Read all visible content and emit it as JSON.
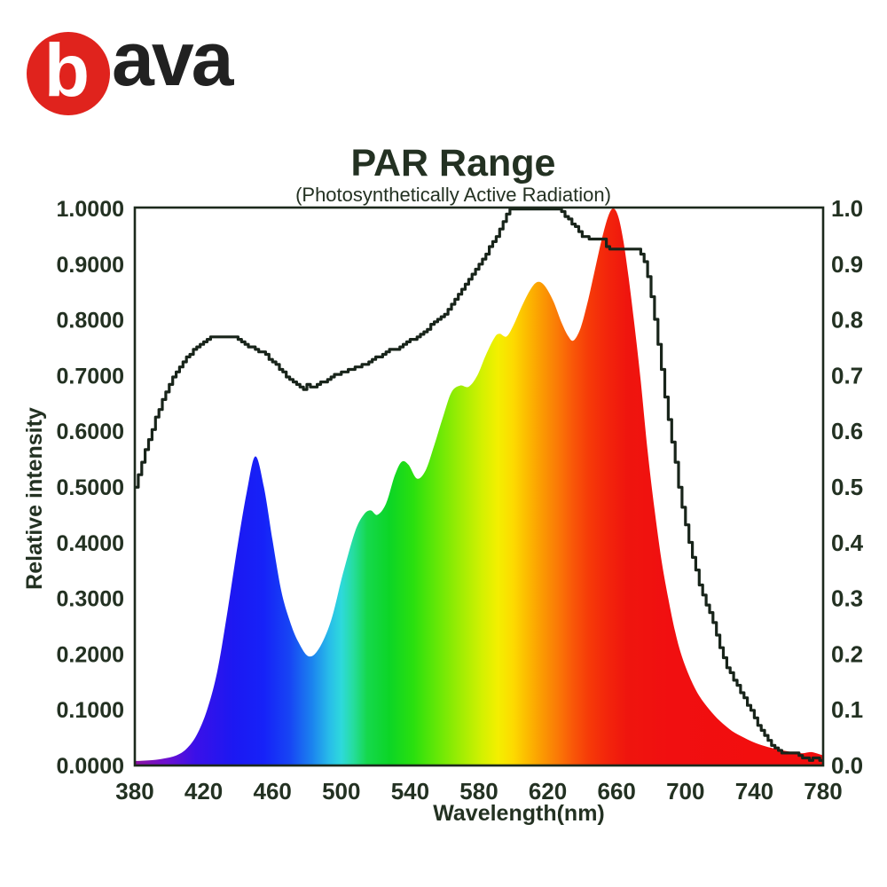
{
  "logo": {
    "b_letter": "b",
    "rest_letters": "ava",
    "circle_color": "#e0231d",
    "b_color": "#ffffff",
    "letters_color": "#212121"
  },
  "chart_data": {
    "type": "area",
    "title": "PAR Range",
    "subtitle": "(Photosynthetically Active Radiation)",
    "xlabel": "Wavelength(nm)",
    "ylabel": "Relative intensity",
    "xlim": [
      380,
      780
    ],
    "ylim": [
      0,
      1
    ],
    "grid": false,
    "legend": "none",
    "text_color": "#233122",
    "axis_color": "#1c291c",
    "line_color": "#18241a",
    "x_ticks": [
      "380",
      "420",
      "460",
      "500",
      "540",
      "580",
      "620",
      "660",
      "700",
      "740",
      "780"
    ],
    "y_ticks_left": [
      "1.0000",
      "0.9000",
      "0.8000",
      "0.7000",
      "0.6000",
      "0.5000",
      "0.4000",
      "0.3000",
      "0.2000",
      "0.1000",
      "0.0000"
    ],
    "y_ticks_right": [
      "1.0",
      "0.9",
      "0.8",
      "0.7",
      "0.6",
      "0.5",
      "0.4",
      "0.3",
      "0.2",
      "0.1",
      "0.0"
    ],
    "series": [
      {
        "name": "led-spectrum-rainbow-area",
        "type": "smooth-area",
        "points": [
          [
            380,
            0.008
          ],
          [
            388,
            0.009
          ],
          [
            396,
            0.012
          ],
          [
            404,
            0.018
          ],
          [
            410,
            0.03
          ],
          [
            416,
            0.055
          ],
          [
            422,
            0.1
          ],
          [
            428,
            0.17
          ],
          [
            434,
            0.28
          ],
          [
            440,
            0.4
          ],
          [
            445,
            0.49
          ],
          [
            450,
            0.555
          ],
          [
            455,
            0.5
          ],
          [
            460,
            0.405
          ],
          [
            465,
            0.315
          ],
          [
            470,
            0.26
          ],
          [
            475,
            0.222
          ],
          [
            481,
            0.196
          ],
          [
            487,
            0.21
          ],
          [
            494,
            0.26
          ],
          [
            501,
            0.345
          ],
          [
            508,
            0.42
          ],
          [
            513,
            0.45
          ],
          [
            517,
            0.458
          ],
          [
            521,
            0.45
          ],
          [
            526,
            0.47
          ],
          [
            531,
            0.52
          ],
          [
            535,
            0.545
          ],
          [
            539,
            0.54
          ],
          [
            544,
            0.515
          ],
          [
            549,
            0.53
          ],
          [
            554,
            0.575
          ],
          [
            559,
            0.625
          ],
          [
            564,
            0.67
          ],
          [
            569,
            0.682
          ],
          [
            574,
            0.68
          ],
          [
            579,
            0.7
          ],
          [
            584,
            0.737
          ],
          [
            589,
            0.768
          ],
          [
            592,
            0.775
          ],
          [
            596,
            0.77
          ],
          [
            600,
            0.79
          ],
          [
            605,
            0.825
          ],
          [
            610,
            0.855
          ],
          [
            614,
            0.868
          ],
          [
            618,
            0.862
          ],
          [
            623,
            0.835
          ],
          [
            628,
            0.795
          ],
          [
            632,
            0.77
          ],
          [
            635,
            0.763
          ],
          [
            639,
            0.785
          ],
          [
            643,
            0.83
          ],
          [
            647,
            0.885
          ],
          [
            651,
            0.94
          ],
          [
            655,
            0.985
          ],
          [
            658,
            1.0
          ],
          [
            661,
            0.985
          ],
          [
            664,
            0.94
          ],
          [
            667,
            0.875
          ],
          [
            670,
            0.8
          ],
          [
            674,
            0.69
          ],
          [
            678,
            0.565
          ],
          [
            682,
            0.46
          ],
          [
            686,
            0.37
          ],
          [
            690,
            0.3
          ],
          [
            694,
            0.24
          ],
          [
            698,
            0.195
          ],
          [
            703,
            0.155
          ],
          [
            708,
            0.125
          ],
          [
            714,
            0.1
          ],
          [
            720,
            0.08
          ],
          [
            727,
            0.062
          ],
          [
            734,
            0.05
          ],
          [
            741,
            0.04
          ],
          [
            748,
            0.033
          ],
          [
            755,
            0.028
          ],
          [
            762,
            0.024
          ],
          [
            768,
            0.022
          ],
          [
            773,
            0.024
          ],
          [
            778,
            0.02
          ],
          [
            780,
            0.018
          ]
        ]
      },
      {
        "name": "par-response-line",
        "type": "stepped-line",
        "points": [
          [
            380,
            0.5
          ],
          [
            384,
            0.545
          ],
          [
            388,
            0.585
          ],
          [
            392,
            0.625
          ],
          [
            396,
            0.655
          ],
          [
            400,
            0.685
          ],
          [
            405,
            0.712
          ],
          [
            410,
            0.733
          ],
          [
            415,
            0.75
          ],
          [
            420,
            0.762
          ],
          [
            424,
            0.77
          ],
          [
            438,
            0.77
          ],
          [
            444,
            0.757
          ],
          [
            450,
            0.747
          ],
          [
            456,
            0.737
          ],
          [
            461,
            0.722
          ],
          [
            466,
            0.705
          ],
          [
            471,
            0.69
          ],
          [
            475,
            0.68
          ],
          [
            478,
            0.677
          ],
          [
            480,
            0.684
          ],
          [
            483,
            0.68
          ],
          [
            486,
            0.684
          ],
          [
            490,
            0.69
          ],
          [
            494,
            0.698
          ],
          [
            498,
            0.703
          ],
          [
            503,
            0.71
          ],
          [
            508,
            0.715
          ],
          [
            513,
            0.72
          ],
          [
            518,
            0.728
          ],
          [
            523,
            0.737
          ],
          [
            528,
            0.745
          ],
          [
            533,
            0.75
          ],
          [
            538,
            0.76
          ],
          [
            543,
            0.768
          ],
          [
            548,
            0.778
          ],
          [
            552,
            0.792
          ],
          [
            556,
            0.8
          ],
          [
            560,
            0.812
          ],
          [
            564,
            0.827
          ],
          [
            568,
            0.845
          ],
          [
            572,
            0.862
          ],
          [
            576,
            0.88
          ],
          [
            580,
            0.9
          ],
          [
            584,
            0.92
          ],
          [
            588,
            0.94
          ],
          [
            592,
            0.963
          ],
          [
            595,
            0.985
          ],
          [
            598,
            1.0
          ],
          [
            625,
            1.0
          ],
          [
            629,
            0.99
          ],
          [
            633,
            0.975
          ],
          [
            637,
            0.965
          ],
          [
            640,
            0.95
          ],
          [
            643,
            0.947
          ],
          [
            652,
            0.945
          ],
          [
            654,
            0.93
          ],
          [
            657,
            0.928
          ],
          [
            672,
            0.928
          ],
          [
            676,
            0.905
          ],
          [
            679,
            0.862
          ],
          [
            682,
            0.8
          ],
          [
            685,
            0.735
          ],
          [
            688,
            0.66
          ],
          [
            691,
            0.6
          ],
          [
            694,
            0.545
          ],
          [
            697,
            0.48
          ],
          [
            700,
            0.43
          ],
          [
            704,
            0.375
          ],
          [
            708,
            0.325
          ],
          [
            712,
            0.29
          ],
          [
            716,
            0.255
          ],
          [
            720,
            0.21
          ],
          [
            724,
            0.175
          ],
          [
            728,
            0.155
          ],
          [
            732,
            0.132
          ],
          [
            736,
            0.11
          ],
          [
            740,
            0.085
          ],
          [
            744,
            0.062
          ],
          [
            748,
            0.045
          ],
          [
            752,
            0.03
          ],
          [
            756,
            0.024
          ],
          [
            760,
            0.022
          ],
          [
            765,
            0.02
          ],
          [
            768,
            0.012
          ],
          [
            772,
            0.011
          ],
          [
            776,
            0.012
          ],
          [
            780,
            0.009
          ]
        ]
      }
    ],
    "rainbow_stops": [
      [
        380,
        "#8c12a0"
      ],
      [
        398,
        "#6d10cf"
      ],
      [
        415,
        "#3b10e8"
      ],
      [
        437,
        "#1c18f2"
      ],
      [
        455,
        "#1622f8"
      ],
      [
        470,
        "#1745f4"
      ],
      [
        483,
        "#1b83ef"
      ],
      [
        493,
        "#28bce9"
      ],
      [
        500,
        "#2ed9dc"
      ],
      [
        507,
        "#26dd9e"
      ],
      [
        515,
        "#15d84d"
      ],
      [
        528,
        "#0cd526"
      ],
      [
        542,
        "#2ae00e"
      ],
      [
        556,
        "#66e806"
      ],
      [
        570,
        "#a2ed03"
      ],
      [
        582,
        "#d4f101"
      ],
      [
        591,
        "#f3ef00"
      ],
      [
        600,
        "#fdda00"
      ],
      [
        608,
        "#fcbb00"
      ],
      [
        616,
        "#fb9c02"
      ],
      [
        625,
        "#fa7c06"
      ],
      [
        634,
        "#f95908"
      ],
      [
        644,
        "#f63a08"
      ],
      [
        654,
        "#f3260b"
      ],
      [
        666,
        "#ef150e"
      ],
      [
        690,
        "#f10f10"
      ],
      [
        780,
        "#f20d0d"
      ]
    ]
  }
}
